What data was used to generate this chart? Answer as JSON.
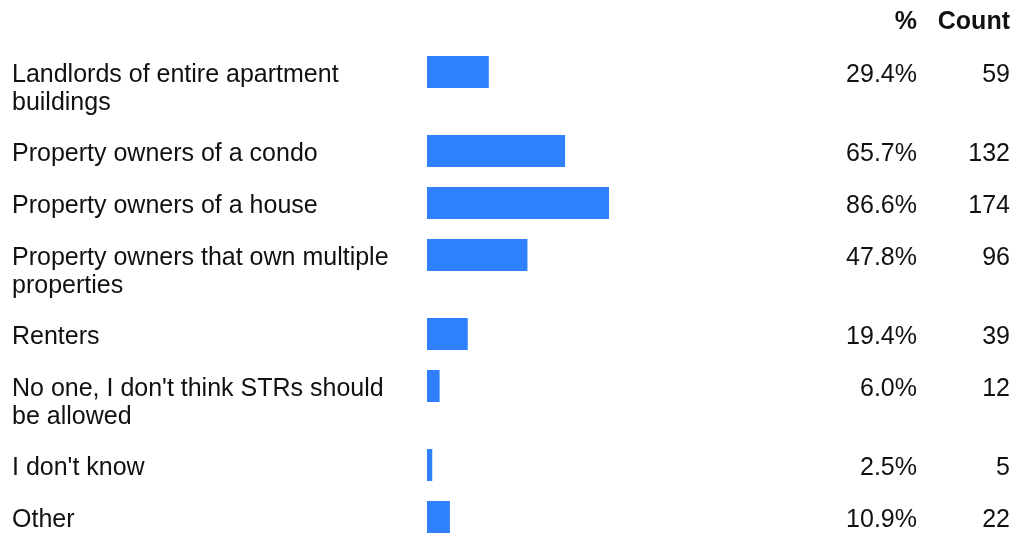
{
  "chart_data": {
    "type": "bar",
    "orientation": "horizontal",
    "tick_labels": "y",
    "color": "#2f80ff",
    "categories": [
      "Landlords of entire apartment buildings",
      "Property owners of a condo",
      "Property owners of a house",
      "Property owners that own multiple properties",
      "Renters",
      "No one, I don't think STRs should be allowed",
      "I don't know",
      "Other"
    ],
    "values": [
      29.4,
      65.7,
      86.6,
      47.8,
      19.4,
      6.0,
      2.5,
      10.9
    ],
    "value_labels": [
      "29.4%",
      "65.7%",
      "86.6%",
      "47.8%",
      "19.4%",
      "6.0%",
      "2.5%",
      "10.9%"
    ],
    "annotations": [
      "%",
      "Count",
      "59",
      "132",
      "174",
      "96",
      "39",
      "12",
      "5",
      "22"
    ]
  }
}
